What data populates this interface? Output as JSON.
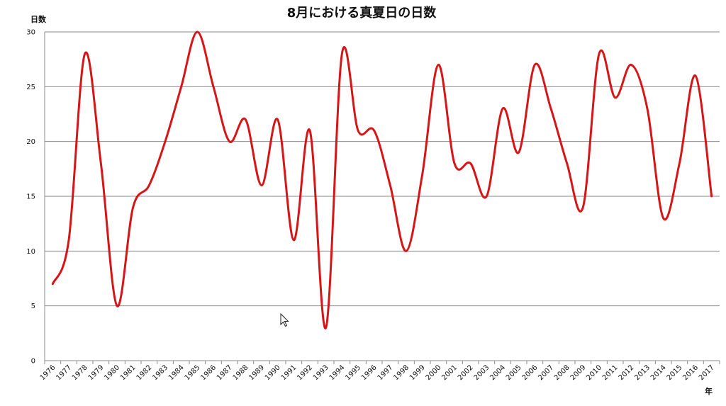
{
  "chart_data": {
    "type": "line",
    "title": "8月における真夏日の日数",
    "xlabel": "年",
    "ylabel": "日数",
    "ylim": [
      0,
      30
    ],
    "yticks": [
      0,
      5,
      10,
      15,
      20,
      25,
      30
    ],
    "grid": true,
    "legend": "none",
    "categories": [
      "1976",
      "1977",
      "1978",
      "1979",
      "1980",
      "1981",
      "1982",
      "1983",
      "1984",
      "1985",
      "1986",
      "1987",
      "1988",
      "1989",
      "1990",
      "1991",
      "1992",
      "1993",
      "1994",
      "1995",
      "1996",
      "1997",
      "1998",
      "1999",
      "2000",
      "2001",
      "2002",
      "2003",
      "2004",
      "2005",
      "2006",
      "2007",
      "2008",
      "2009",
      "2010",
      "2011",
      "2012",
      "2013",
      "2014",
      "2015",
      "2016",
      "2017"
    ],
    "series": [
      {
        "values": [
          7,
          11,
          28,
          18,
          5,
          14,
          16,
          20,
          25,
          30,
          25,
          20,
          22,
          16,
          22,
          11,
          21,
          3,
          28,
          21,
          21,
          16,
          10,
          17,
          27,
          18,
          18,
          15,
          23,
          19,
          27,
          23,
          18,
          14,
          28,
          24,
          27,
          23,
          13,
          18,
          26,
          15
        ],
        "color": "#d61616"
      }
    ]
  },
  "cursor": {
    "icon": "mouse-pointer-icon"
  }
}
